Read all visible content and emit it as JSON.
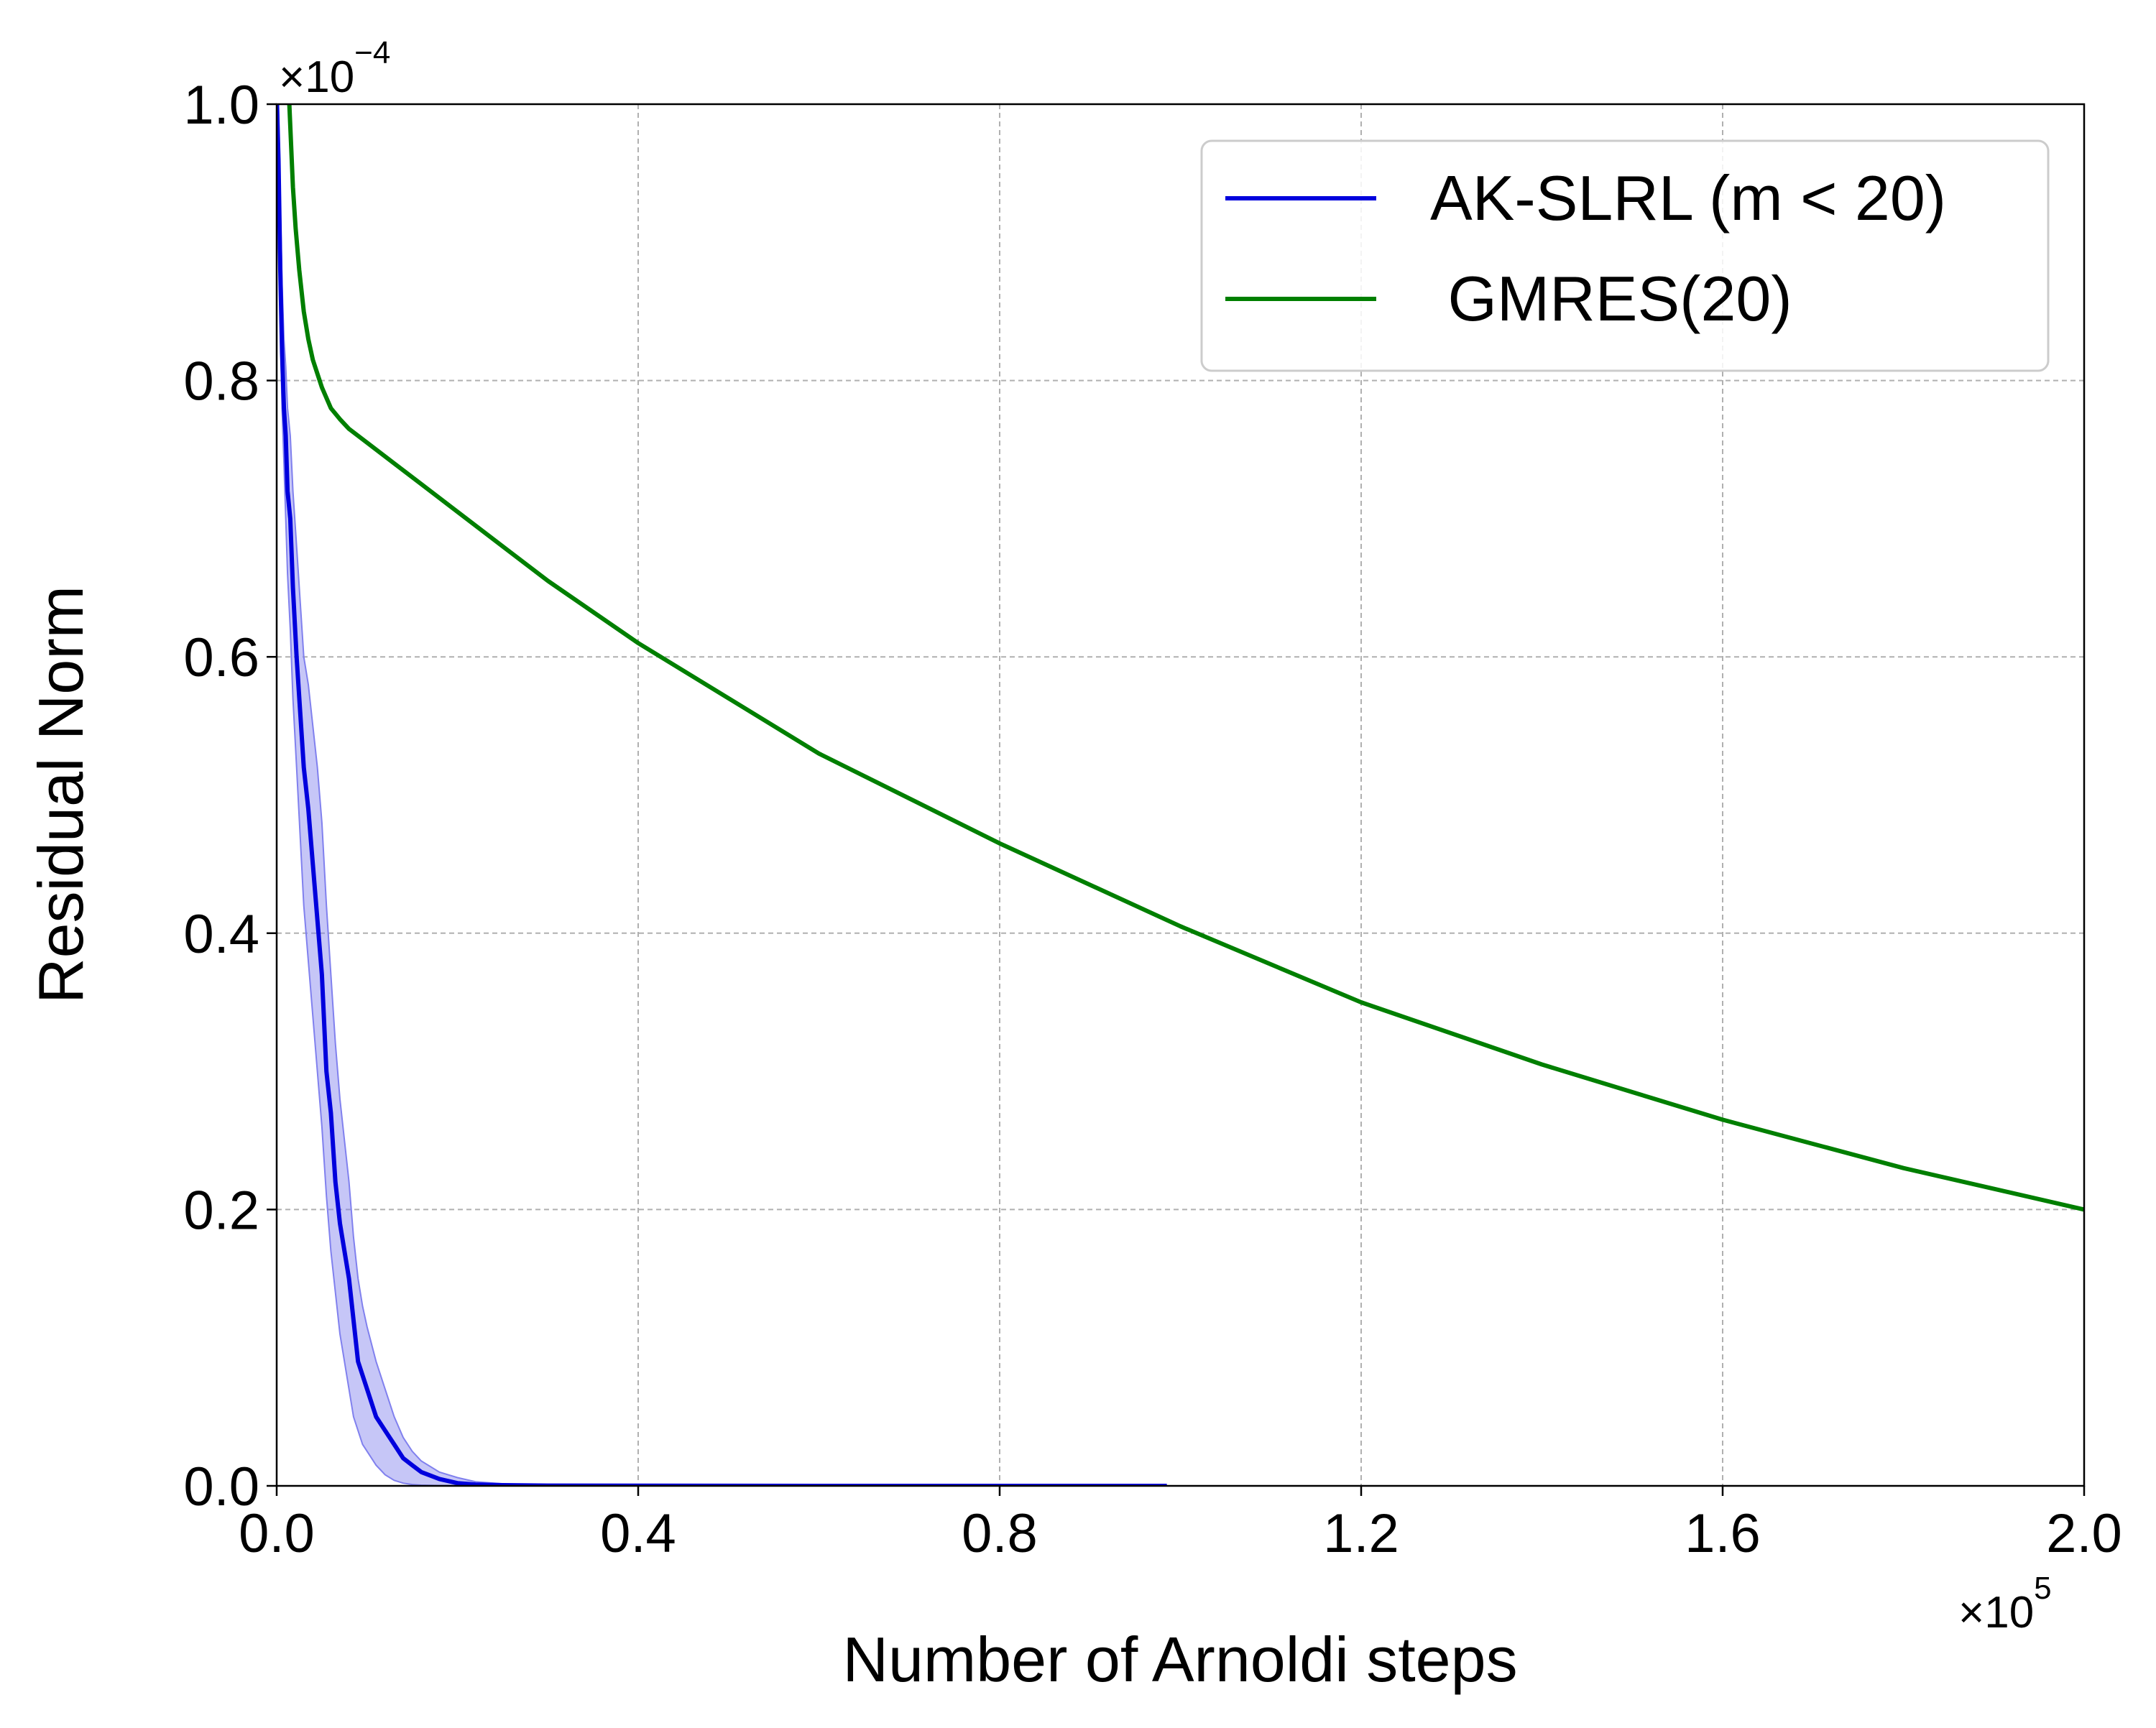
{
  "chart_data": {
    "type": "line",
    "xlabel": "Number of Arnoldi steps",
    "ylabel": "Residual Norm",
    "x_offset_base": "×10",
    "x_offset_exp": "5",
    "y_offset_base": "×10",
    "y_offset_exp": "−4",
    "xlim": [
      0.0,
      2.0
    ],
    "ylim": [
      0.0,
      1.0
    ],
    "xticks": [
      0.0,
      0.4,
      0.8,
      1.2,
      1.6,
      2.0
    ],
    "xtick_labels": [
      "0.0",
      "0.4",
      "0.8",
      "1.2",
      "1.6",
      "2.0"
    ],
    "yticks": [
      0.0,
      0.2,
      0.4,
      0.6,
      0.8,
      1.0
    ],
    "ytick_labels": [
      "0.0",
      "0.2",
      "0.4",
      "0.6",
      "0.8",
      "1.0"
    ],
    "grid": true,
    "legend_position": "top-right",
    "series": [
      {
        "name": "AK-SLRL (m < 20)",
        "color": "#0000dd",
        "band_color": "#8080ee",
        "x": [
          0.0003,
          0.002,
          0.004,
          0.006,
          0.008,
          0.01,
          0.012,
          0.015,
          0.018,
          0.022,
          0.026,
          0.03,
          0.035,
          0.04,
          0.045,
          0.05,
          0.055,
          0.06,
          0.065,
          0.07,
          0.075,
          0.08,
          0.085,
          0.09,
          0.095,
          0.1,
          0.11,
          0.12,
          0.13,
          0.14,
          0.15,
          0.16,
          0.18,
          0.2,
          0.22,
          0.25,
          0.3,
          0.4,
          0.6,
          0.8,
          0.985
        ],
        "y": [
          1.0,
          0.96,
          0.88,
          0.82,
          0.78,
          0.76,
          0.72,
          0.7,
          0.65,
          0.6,
          0.56,
          0.52,
          0.49,
          0.45,
          0.41,
          0.37,
          0.3,
          0.27,
          0.22,
          0.19,
          0.17,
          0.15,
          0.12,
          0.09,
          0.08,
          0.07,
          0.05,
          0.04,
          0.03,
          0.02,
          0.015,
          0.01,
          0.005,
          0.002,
          0.001,
          0.0005,
          0.0002,
          0.0001,
          0.0,
          0.0,
          0.0
        ],
        "y_low": [
          0.98,
          0.92,
          0.84,
          0.78,
          0.74,
          0.7,
          0.66,
          0.62,
          0.57,
          0.52,
          0.47,
          0.42,
          0.38,
          0.34,
          0.3,
          0.26,
          0.21,
          0.17,
          0.14,
          0.11,
          0.09,
          0.07,
          0.05,
          0.04,
          0.03,
          0.025,
          0.015,
          0.008,
          0.004,
          0.002,
          0.001,
          0.0005,
          0.0002,
          0.0001,
          0.0,
          0.0,
          0.0,
          0.0,
          0.0,
          0.0,
          0.0
        ],
        "y_high": [
          1.0,
          1.0,
          0.93,
          0.87,
          0.83,
          0.81,
          0.78,
          0.76,
          0.72,
          0.68,
          0.64,
          0.6,
          0.58,
          0.55,
          0.52,
          0.48,
          0.42,
          0.37,
          0.32,
          0.28,
          0.25,
          0.22,
          0.18,
          0.15,
          0.13,
          0.115,
          0.09,
          0.07,
          0.05,
          0.035,
          0.025,
          0.018,
          0.01,
          0.006,
          0.003,
          0.0015,
          0.0006,
          0.0002,
          0.0,
          0.0,
          0.0
        ]
      },
      {
        "name": " GMRES(20)",
        "color": "#007f00",
        "x": [
          0.014,
          0.016,
          0.018,
          0.021,
          0.025,
          0.03,
          0.035,
          0.04,
          0.05,
          0.06,
          0.07,
          0.08,
          0.1,
          0.13,
          0.16,
          0.2,
          0.25,
          0.3,
          0.4,
          0.5,
          0.6,
          0.8,
          1.0,
          1.2,
          1.4,
          1.6,
          1.8,
          2.0
        ],
        "y": [
          1.0,
          0.97,
          0.94,
          0.91,
          0.88,
          0.85,
          0.83,
          0.815,
          0.795,
          0.78,
          0.772,
          0.765,
          0.755,
          0.74,
          0.725,
          0.705,
          0.68,
          0.655,
          0.61,
          0.57,
          0.53,
          0.465,
          0.405,
          0.35,
          0.305,
          0.265,
          0.23,
          0.2
        ]
      }
    ]
  }
}
